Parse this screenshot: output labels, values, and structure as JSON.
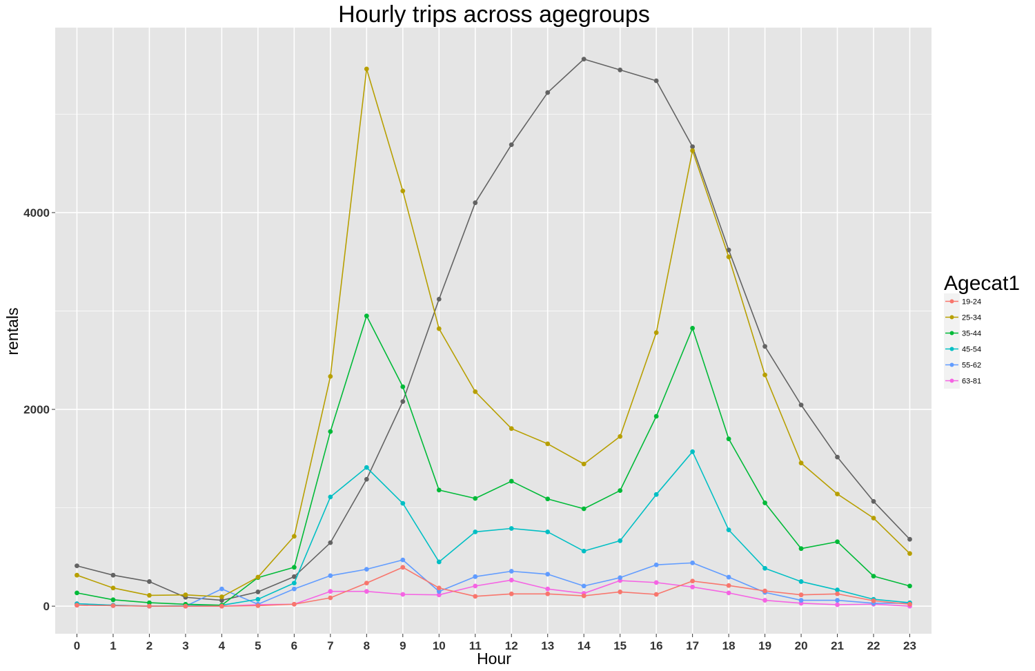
{
  "chart_data": {
    "type": "line",
    "title": "Hourly trips across agegroups",
    "xlabel": "Hour",
    "ylabel": "rentals",
    "x": [
      0,
      1,
      2,
      3,
      4,
      5,
      6,
      7,
      8,
      9,
      10,
      11,
      12,
      13,
      14,
      15,
      16,
      17,
      18,
      19,
      20,
      21,
      22,
      23
    ],
    "x_tick_labels": [
      "0",
      "1",
      "2",
      "3",
      "4",
      "5",
      "6",
      "7",
      "8",
      "9",
      "10",
      "11",
      "12",
      "13",
      "14",
      "15",
      "16",
      "17",
      "18",
      "19",
      "20",
      "21",
      "22",
      "23"
    ],
    "y_ticks": [
      0,
      2000,
      4000
    ],
    "y_tick_labels": [
      "0",
      "2000",
      "4000"
    ],
    "xlim": [
      -0.6,
      23.6
    ],
    "ylim": [
      -280,
      5880
    ],
    "grid": true,
    "legend": {
      "title": "Agecat1",
      "position": "right"
    },
    "series": [
      {
        "name": "19-24",
        "color": "#F8766D",
        "values": [
          10,
          5,
          0,
          0,
          0,
          5,
          20,
          85,
          235,
          395,
          185,
          100,
          125,
          125,
          105,
          145,
          120,
          255,
          210,
          155,
          115,
          125,
          55,
          20
        ]
      },
      {
        "name": "25-34",
        "color": "#B79F00",
        "values": [
          315,
          185,
          110,
          115,
          95,
          295,
          710,
          2335,
          5460,
          4220,
          2820,
          2180,
          1805,
          1650,
          1445,
          1725,
          2780,
          4630,
          3550,
          2350,
          1455,
          1140,
          895,
          535
        ]
      },
      {
        "name": "35-44",
        "color": "#00BA38",
        "values": [
          135,
          65,
          35,
          20,
          10,
          290,
          395,
          1775,
          2950,
          2230,
          1180,
          1095,
          1270,
          1090,
          990,
          1175,
          1930,
          2825,
          1700,
          1050,
          585,
          655,
          305,
          205
        ]
      },
      {
        "name": "45-54",
        "color": "#00BFC4",
        "values": [
          25,
          10,
          0,
          5,
          10,
          70,
          235,
          1110,
          1410,
          1045,
          450,
          755,
          790,
          755,
          560,
          665,
          1135,
          1570,
          775,
          385,
          250,
          165,
          70,
          35
        ]
      },
      {
        "name": "55-62",
        "color": "#619CFF",
        "values": [
          10,
          5,
          0,
          0,
          175,
          20,
          175,
          310,
          375,
          470,
          150,
          300,
          355,
          325,
          205,
          290,
          420,
          440,
          295,
          140,
          60,
          60,
          30,
          30
        ]
      },
      {
        "name": "63-81",
        "color": "#F564E3",
        "values": [
          25,
          10,
          0,
          0,
          0,
          15,
          20,
          150,
          150,
          120,
          115,
          205,
          265,
          175,
          130,
          260,
          240,
          195,
          135,
          60,
          30,
          15,
          20,
          0
        ]
      },
      {
        "color": "#636363",
        "values": [
          410,
          315,
          250,
          90,
          60,
          145,
          300,
          645,
          1290,
          2080,
          3120,
          4100,
          4690,
          5220,
          5560,
          5450,
          5340,
          4670,
          3620,
          2640,
          2045,
          1515,
          1065,
          680
        ]
      }
    ]
  }
}
